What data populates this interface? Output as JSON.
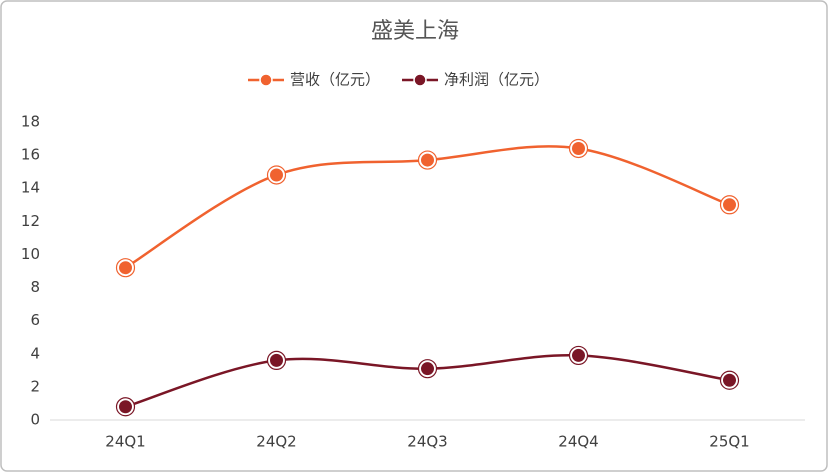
{
  "chart_data": {
    "type": "line",
    "title": "盛美上海",
    "categories": [
      "24Q1",
      "24Q2",
      "24Q3",
      "24Q4",
      "25Q1"
    ],
    "series": [
      {
        "name": "营收（亿元）",
        "color": "#f0622f",
        "values": [
          9.2,
          14.8,
          15.7,
          16.4,
          13.0
        ]
      },
      {
        "name": "净利润（亿元）",
        "color": "#7a1626",
        "values": [
          0.8,
          3.6,
          3.1,
          3.9,
          2.4
        ]
      }
    ],
    "ylim": [
      0,
      18
    ],
    "yticks": [
      0,
      2,
      4,
      6,
      8,
      10,
      12,
      14,
      16,
      18
    ],
    "smooth": true,
    "grid": false,
    "legend": "top"
  }
}
